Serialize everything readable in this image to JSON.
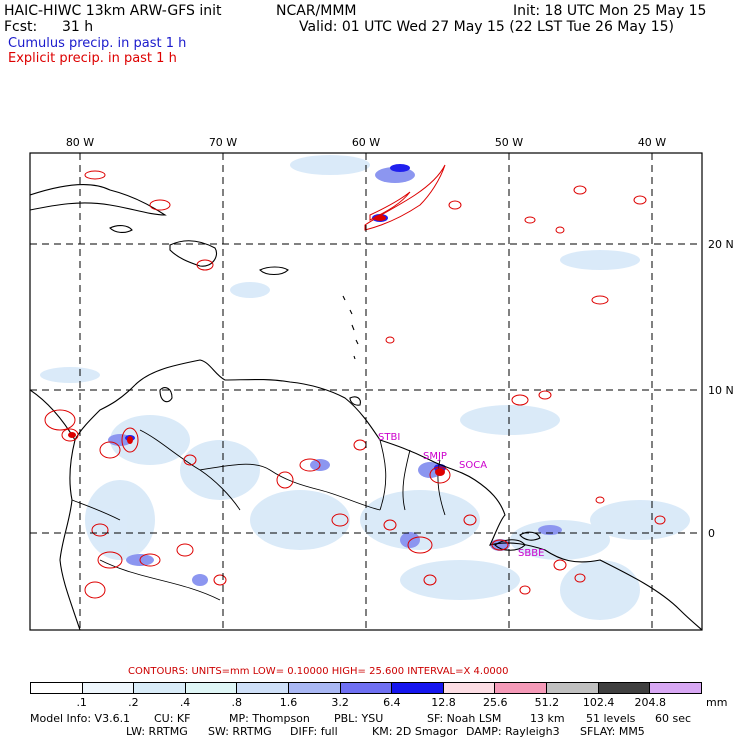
{
  "header": {
    "title": "HAIC-HIWC 13km ARW-GFS init",
    "org": "NCAR/MMM",
    "init": "Init: 18 UTC Mon 25 May 15",
    "fcst_label": "Fcst:",
    "fcst_value": "31 h",
    "valid": "Valid: 01 UTC Wed 27 May 15 (22 LST Tue 26 May 15)",
    "cumulus_label": "Cumulus precip. in past 1 h",
    "explicit_label": "Explicit precip. in past 1 h",
    "cumulus_color": "#1a1acc",
    "explicit_color": "#dd0000"
  },
  "map": {
    "lon_labels": [
      "80 W",
      "70 W",
      "60 W",
      "50 W",
      "40 W"
    ],
    "lat_labels": [
      "20 N",
      "10 N",
      "0"
    ],
    "stations": [
      "STBI",
      "SMJP",
      "SOCA",
      "SBBE"
    ],
    "station_color": "#cc00cc"
  },
  "contours_line": "CONTOURS:  UNITS=mm  LOW= 0.10000      HIGH=  25.600      INTERVAL=X  4.0000",
  "legend": {
    "labels": [
      ".1",
      ".2",
      ".4",
      ".8",
      "1.6",
      "3.2",
      "6.4",
      "12.8",
      "25.6",
      "51.2",
      "102.4",
      "204.8"
    ],
    "colors": [
      "#ffffff",
      "#eef6fc",
      "#d9ecf8",
      "#dff6f6",
      "#cfe0f8",
      "#aab8f4",
      "#6f70f2",
      "#1515ee",
      "#fcdde4",
      "#f59ab8",
      "#c0c0c0",
      "#404040",
      "#d8a8f4"
    ],
    "units": "mm"
  },
  "model_info": {
    "line1": [
      "Model Info: V3.6.1",
      "CU: KF",
      "MP: Thompson",
      "PBL: YSU",
      "SF: Noah LSM",
      "13 km",
      "51 levels",
      "60 sec"
    ],
    "line2": [
      "LW: RRTMG",
      "SW: RRTMG",
      "DIFF: full",
      "KM: 2D Smagor",
      "DAMP: Rayleigh3",
      "SFLAY: MM5"
    ]
  }
}
